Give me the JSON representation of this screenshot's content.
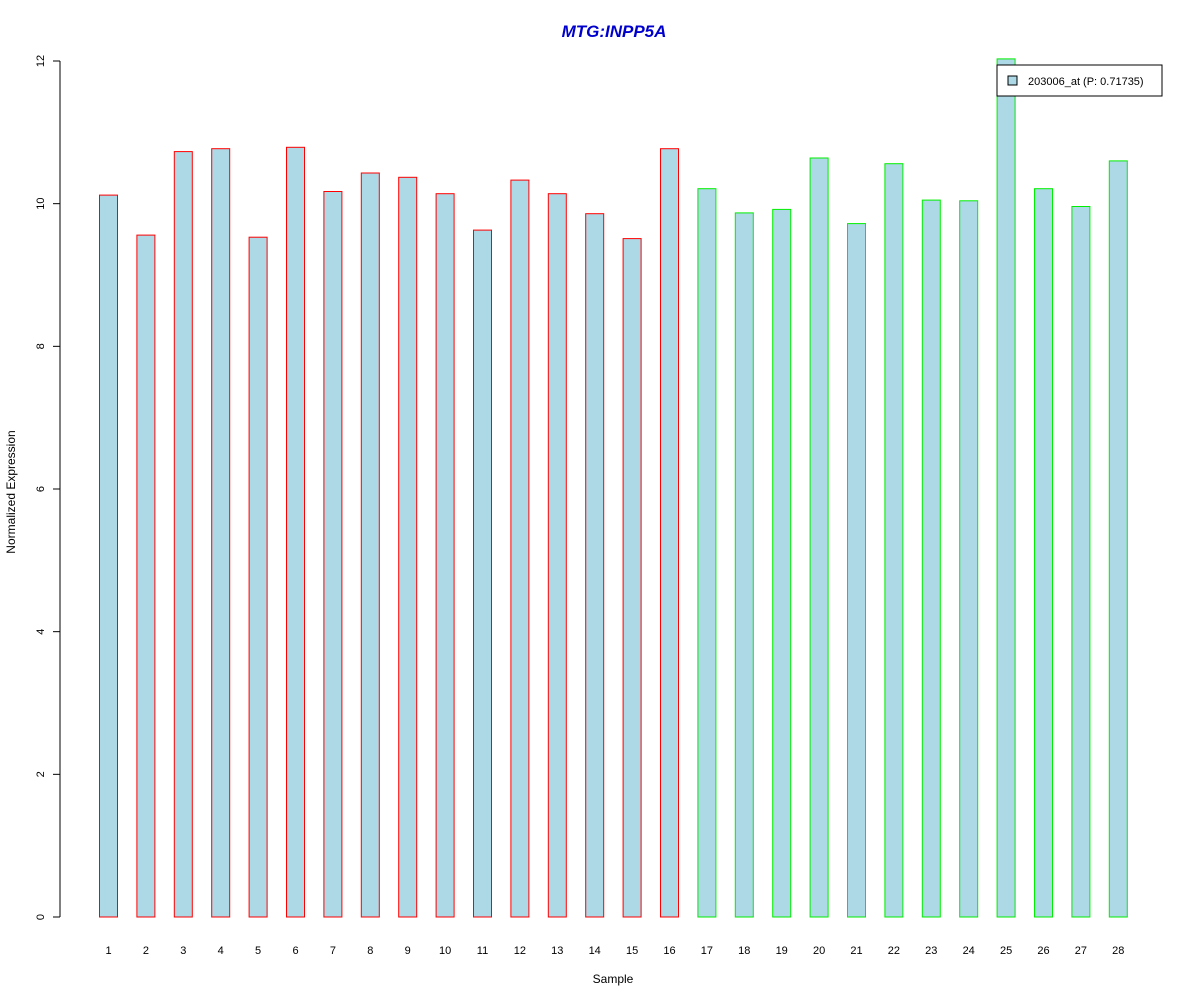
{
  "chart_data": {
    "type": "bar",
    "title": "MTG:INPP5A",
    "xlabel": "Sample",
    "ylabel": "Normalized Expression",
    "ylim": [
      0,
      12
    ],
    "yticks": [
      "0",
      "2",
      "4",
      "6",
      "8",
      "10",
      "12"
    ],
    "categories": [
      "1",
      "2",
      "3",
      "4",
      "5",
      "6",
      "7",
      "8",
      "9",
      "10",
      "11",
      "12",
      "13",
      "14",
      "15",
      "16",
      "17",
      "18",
      "19",
      "20",
      "21",
      "22",
      "23",
      "24",
      "25",
      "26",
      "27",
      "28"
    ],
    "values": [
      10.12,
      9.56,
      10.73,
      10.77,
      9.53,
      10.79,
      10.17,
      10.43,
      10.37,
      10.14,
      9.63,
      10.33,
      10.14,
      9.86,
      9.51,
      10.77,
      10.21,
      9.87,
      9.92,
      10.64,
      9.72,
      10.56,
      10.05,
      10.04,
      12.03,
      10.21,
      9.96,
      10.6
    ],
    "group_of_bar": [
      0,
      0,
      0,
      0,
      0,
      0,
      0,
      0,
      0,
      0,
      0,
      0,
      0,
      0,
      0,
      0,
      1,
      1,
      1,
      1,
      1,
      1,
      1,
      1,
      1,
      1,
      1,
      1
    ],
    "group_border_colors": [
      "#ff0000",
      "#00ee00"
    ],
    "fill_color": "#add8e6",
    "title_color": "#0000cd",
    "legend": {
      "entries": [
        "203006_at (P: 0.71735)"
      ],
      "position": "top-right"
    },
    "grid": false
  }
}
